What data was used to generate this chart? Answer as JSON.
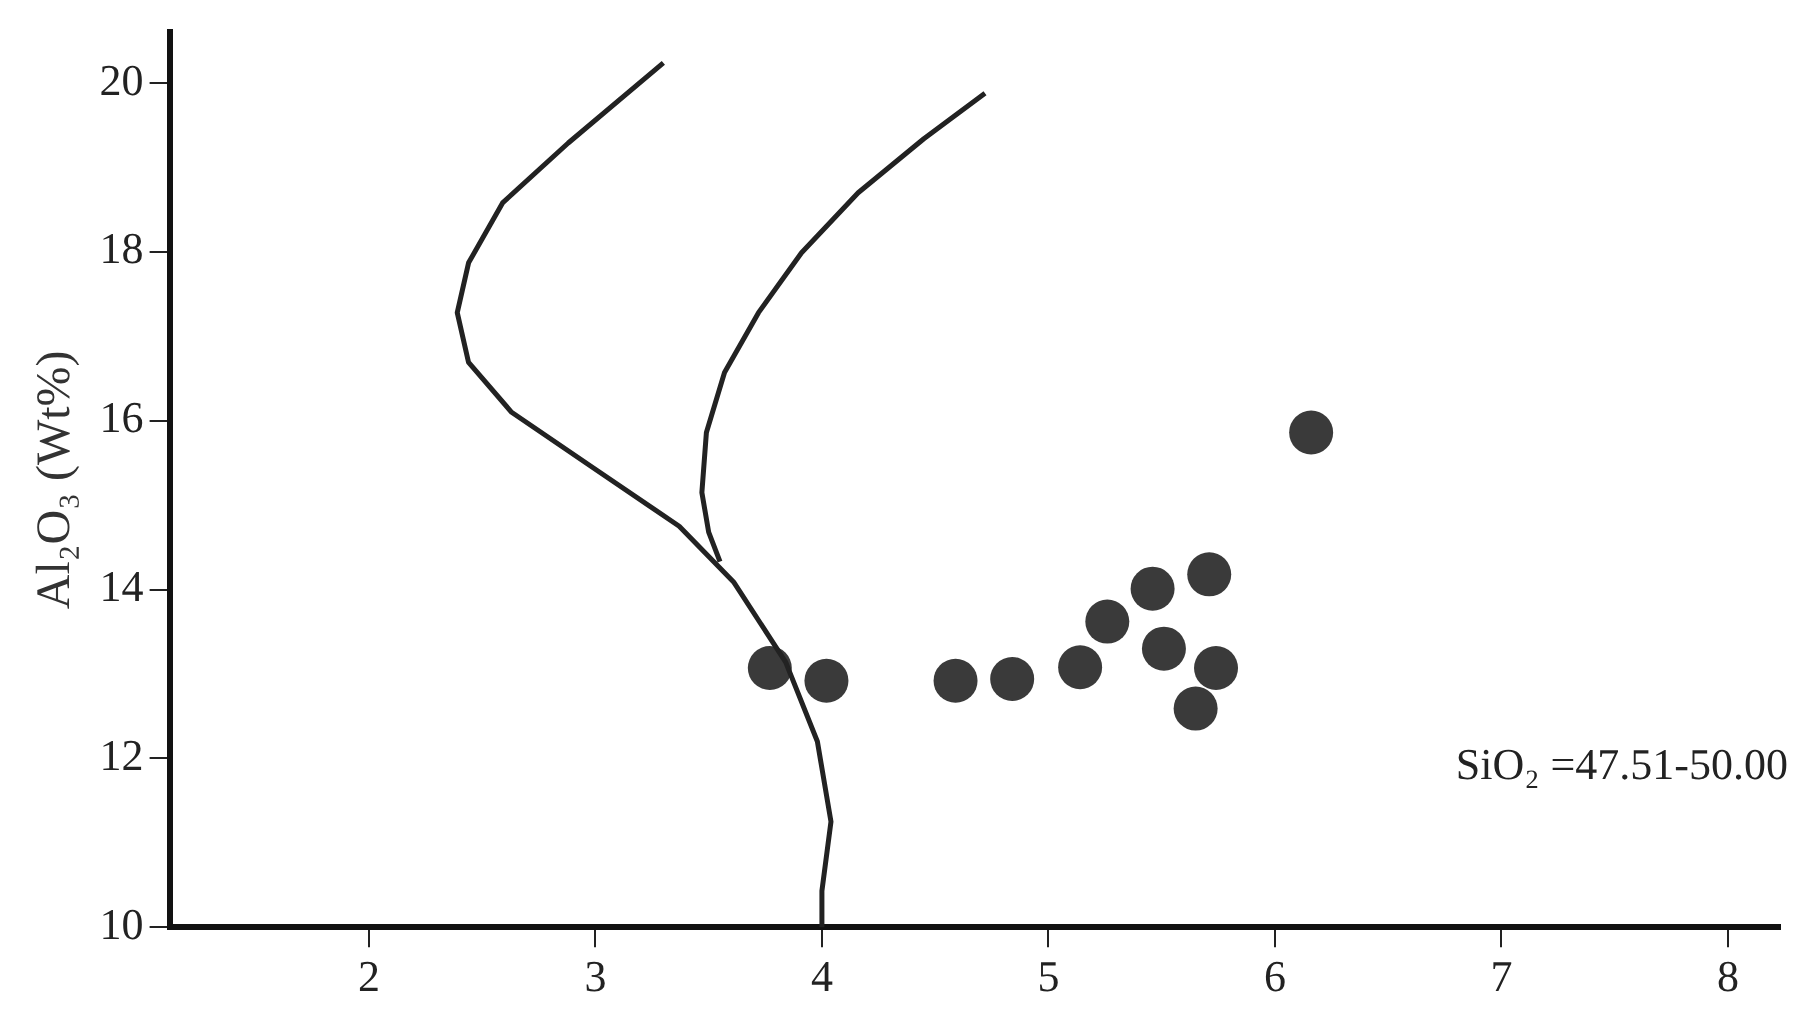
{
  "chart_data": {
    "type": "scatter",
    "ylabel": "Al₂O₃ (Wt%)",
    "annotations": [
      "SiO₂ =47.51-50.00"
    ],
    "xlim": [
      1.12,
      8.23
    ],
    "ylim": [
      10,
      20.6
    ],
    "xticks": [
      2,
      3,
      4,
      5,
      6,
      7,
      8
    ],
    "yticks": [
      10,
      12,
      14,
      16,
      18,
      20
    ],
    "grid": false,
    "legend": false,
    "series": [
      {
        "type": "line",
        "color": "#222222",
        "marker": "none",
        "x": [
          3.3,
          2.88,
          2.59,
          2.44,
          2.39,
          2.44,
          2.63,
          2.98,
          3.37,
          3.61,
          3.84,
          3.98,
          4.04,
          4.0,
          4.0
        ],
        "values": [
          20.24,
          19.29,
          18.58,
          17.87,
          17.28,
          16.69,
          16.1,
          15.46,
          14.75,
          14.09,
          13.14,
          12.2,
          11.25,
          10.43,
          10.0
        ]
      },
      {
        "type": "line",
        "color": "#222222",
        "marker": "none",
        "x": [
          4.72,
          4.45,
          4.16,
          3.91,
          3.72,
          3.57,
          3.49,
          3.47,
          3.5,
          3.55
        ],
        "values": [
          19.88,
          19.34,
          18.7,
          17.99,
          17.28,
          16.57,
          15.86,
          15.15,
          14.68,
          14.33
        ]
      },
      {
        "color": "#3a3a3a",
        "marker": "circle",
        "x": [
          3.77,
          4.02,
          4.59,
          4.84,
          5.14,
          5.26,
          5.46,
          5.71,
          5.51,
          5.74,
          5.65,
          6.16
        ],
        "values": [
          13.07,
          12.92,
          12.92,
          12.94,
          13.08,
          13.62,
          14.01,
          14.18,
          13.3,
          13.07,
          12.59,
          15.86
        ]
      }
    ]
  }
}
